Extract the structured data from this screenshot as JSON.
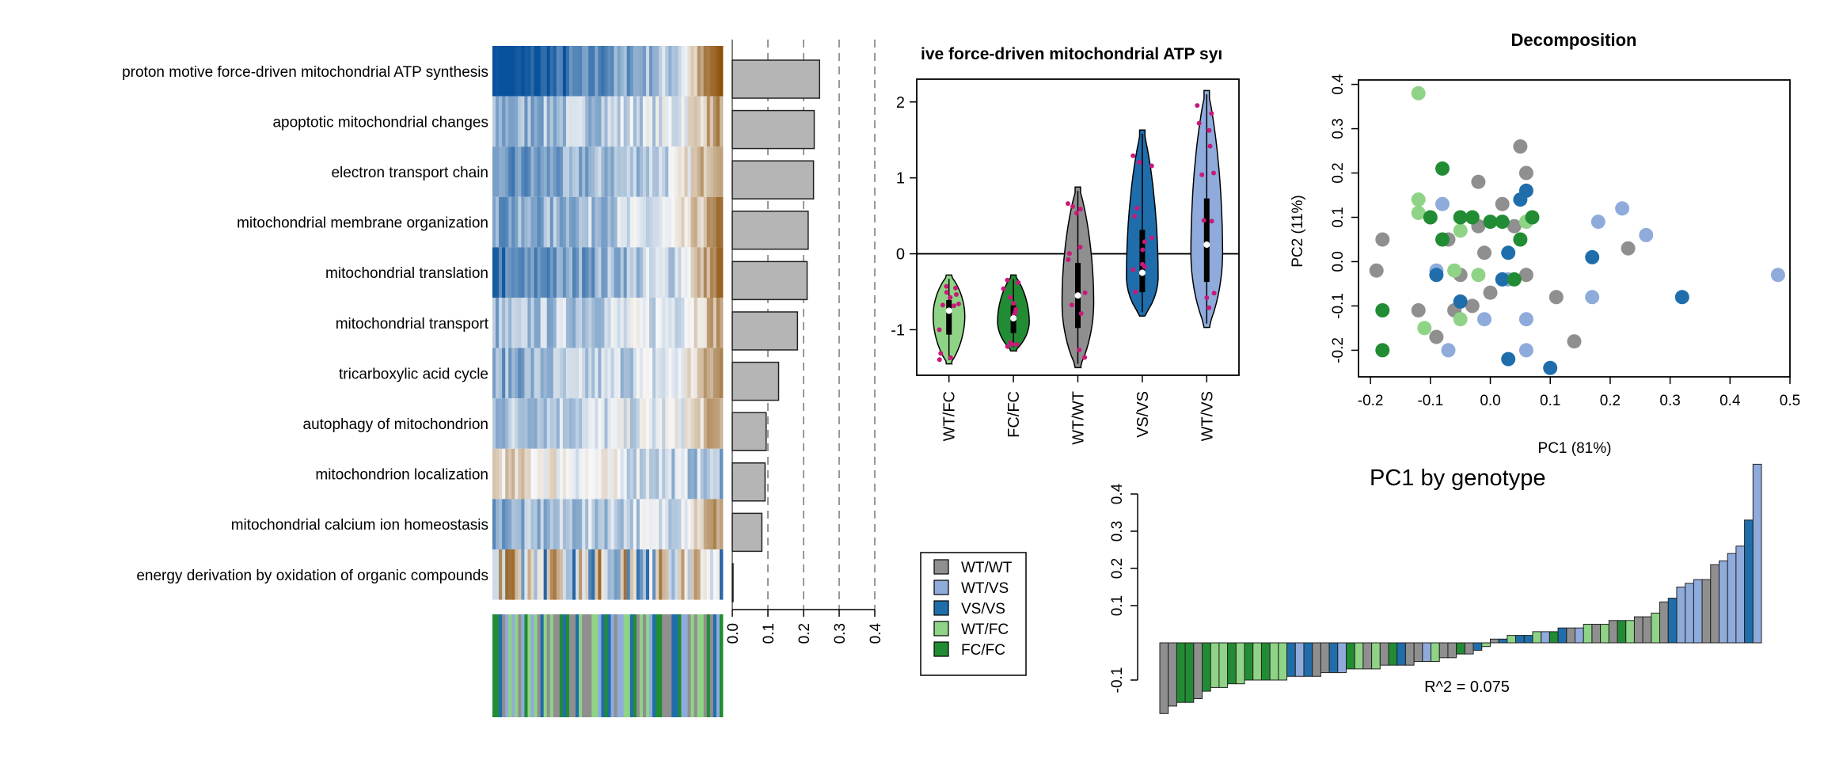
{
  "genotypes": [
    {
      "name": "WT/WT",
      "color": "#8f8f8f"
    },
    {
      "name": "WT/VS",
      "color": "#8fabdb"
    },
    {
      "name": "VS/VS",
      "color": "#1f6eab"
    },
    {
      "name": "WT/FC",
      "color": "#8fd486"
    },
    {
      "name": "FC/FC",
      "color": "#228c34"
    }
  ],
  "chart_data": [
    {
      "type": "heatmap",
      "rows": [
        "proton motive force-driven mitochondrial ATP synthesis",
        "apoptotic mitochondrial changes",
        "electron transport chain",
        "mitochondrial membrane organization",
        "mitochondrial translation",
        "mitochondrial transport",
        "tricarboxylic acid cycle",
        "autophagy of mitochondrion",
        "mitochondrion localization",
        "mitochondrial calcium ion homeostasis",
        "energy derivation by oxidation of organic compounds"
      ],
      "n_samples": 72,
      "palette": {
        "low": "#08519c",
        "mid": "#f7f7f7",
        "high": "#8c510a"
      }
    },
    {
      "type": "bar",
      "orientation": "horizontal",
      "categories": [
        "proton motive force-driven mitochondrial ATP synthesis",
        "apoptotic mitochondrial changes",
        "electron transport chain",
        "mitochondrial membrane organization",
        "mitochondrial translation",
        "mitochondrial transport",
        "tricarboxylic acid cycle",
        "autophagy of mitochondrion",
        "mitochondrion localization",
        "mitochondrial calcium ion homeostasis",
        "energy derivation by oxidation of organic compounds"
      ],
      "values": [
        0.245,
        0.23,
        0.228,
        0.213,
        0.21,
        0.183,
        0.13,
        0.095,
        0.092,
        0.083,
        0.002
      ],
      "xlim": [
        0,
        0.4
      ],
      "xticks": [
        "0.0",
        "0.1",
        "0.2",
        "0.3",
        "0.4"
      ],
      "grid": "dashed vertical"
    },
    {
      "type": "violin",
      "title": "ive force-driven mitochondrial ATP syı",
      "categories": [
        "WT/FC",
        "FC/FC",
        "WT/WT",
        "VS/VS",
        "WT/VS"
      ],
      "ranges": [
        [
          -1.45,
          -0.28
        ],
        [
          -1.28,
          -0.28
        ],
        [
          -1.5,
          0.88
        ],
        [
          -0.82,
          1.63
        ],
        [
          -0.97,
          2.15
        ]
      ],
      "medians": [
        -0.75,
        -0.85,
        -0.55,
        -0.25,
        0.12
      ],
      "ylim": [
        -1.6,
        2.3
      ],
      "yticks": [
        "-1",
        "0",
        "1",
        "2"
      ],
      "reference_line": 0
    },
    {
      "type": "scatter",
      "title": "Decomposition",
      "xlabel": "PC1 (81%)",
      "ylabel": "PC2 (11%)",
      "xlim": [
        -0.22,
        0.5
      ],
      "ylim": [
        -0.26,
        0.41
      ],
      "xticks": [
        "-0.2",
        "-0.1",
        "0.0",
        "0.1",
        "0.2",
        "0.3",
        "0.4",
        "0.5"
      ],
      "yticks": [
        "-0.2",
        "-0.1",
        "0.0",
        "0.1",
        "0.2",
        "0.3",
        "0.4"
      ],
      "points": [
        {
          "x": -0.18,
          "y": 0.05,
          "g": "WT/WT"
        },
        {
          "x": -0.19,
          "y": -0.02,
          "g": "WT/WT"
        },
        {
          "x": -0.12,
          "y": -0.11,
          "g": "WT/WT"
        },
        {
          "x": -0.09,
          "y": -0.17,
          "g": "WT/WT"
        },
        {
          "x": -0.07,
          "y": 0.05,
          "g": "WT/WT"
        },
        {
          "x": -0.05,
          "y": -0.03,
          "g": "WT/WT"
        },
        {
          "x": -0.03,
          "y": -0.1,
          "g": "WT/WT"
        },
        {
          "x": -0.02,
          "y": 0.18,
          "g": "WT/WT"
        },
        {
          "x": -0.02,
          "y": 0.08,
          "g": "WT/WT"
        },
        {
          "x": -0.01,
          "y": 0.02,
          "g": "WT/WT"
        },
        {
          "x": 0.0,
          "y": -0.07,
          "g": "WT/WT"
        },
        {
          "x": 0.02,
          "y": 0.13,
          "g": "WT/WT"
        },
        {
          "x": 0.04,
          "y": 0.08,
          "g": "WT/WT"
        },
        {
          "x": 0.05,
          "y": 0.26,
          "g": "WT/WT"
        },
        {
          "x": 0.06,
          "y": 0.2,
          "g": "WT/WT"
        },
        {
          "x": 0.06,
          "y": -0.03,
          "g": "WT/WT"
        },
        {
          "x": 0.11,
          "y": -0.08,
          "g": "WT/WT"
        },
        {
          "x": 0.14,
          "y": -0.18,
          "g": "WT/WT"
        },
        {
          "x": 0.23,
          "y": 0.03,
          "g": "WT/WT"
        },
        {
          "x": -0.06,
          "y": -0.11,
          "g": "WT/WT"
        },
        {
          "x": -0.08,
          "y": 0.13,
          "g": "WT/VS"
        },
        {
          "x": -0.09,
          "y": -0.02,
          "g": "WT/VS"
        },
        {
          "x": -0.07,
          "y": -0.2,
          "g": "WT/VS"
        },
        {
          "x": -0.01,
          "y": -0.13,
          "g": "WT/VS"
        },
        {
          "x": 0.03,
          "y": -0.04,
          "g": "WT/VS"
        },
        {
          "x": 0.06,
          "y": -0.13,
          "g": "WT/VS"
        },
        {
          "x": 0.06,
          "y": -0.2,
          "g": "WT/VS"
        },
        {
          "x": 0.17,
          "y": -0.08,
          "g": "WT/VS"
        },
        {
          "x": 0.18,
          "y": 0.09,
          "g": "WT/VS"
        },
        {
          "x": 0.22,
          "y": 0.12,
          "g": "WT/VS"
        },
        {
          "x": 0.26,
          "y": 0.06,
          "g": "WT/VS"
        },
        {
          "x": 0.48,
          "y": -0.03,
          "g": "WT/VS"
        },
        {
          "x": -0.09,
          "y": -0.03,
          "g": "VS/VS"
        },
        {
          "x": -0.05,
          "y": -0.09,
          "g": "VS/VS"
        },
        {
          "x": 0.02,
          "y": -0.04,
          "g": "VS/VS"
        },
        {
          "x": 0.03,
          "y": 0.02,
          "g": "VS/VS"
        },
        {
          "x": 0.05,
          "y": 0.14,
          "g": "VS/VS"
        },
        {
          "x": 0.06,
          "y": 0.16,
          "g": "VS/VS"
        },
        {
          "x": 0.03,
          "y": -0.22,
          "g": "VS/VS"
        },
        {
          "x": 0.1,
          "y": -0.24,
          "g": "VS/VS"
        },
        {
          "x": 0.17,
          "y": 0.01,
          "g": "VS/VS"
        },
        {
          "x": 0.32,
          "y": -0.08,
          "g": "VS/VS"
        },
        {
          "x": -0.12,
          "y": 0.38,
          "g": "WT/FC"
        },
        {
          "x": -0.12,
          "y": 0.14,
          "g": "WT/FC"
        },
        {
          "x": -0.12,
          "y": 0.11,
          "g": "WT/FC"
        },
        {
          "x": -0.11,
          "y": -0.15,
          "g": "WT/FC"
        },
        {
          "x": -0.06,
          "y": -0.02,
          "g": "WT/FC"
        },
        {
          "x": -0.05,
          "y": 0.07,
          "g": "WT/FC"
        },
        {
          "x": -0.05,
          "y": -0.13,
          "g": "WT/FC"
        },
        {
          "x": -0.02,
          "y": -0.03,
          "g": "WT/FC"
        },
        {
          "x": 0.06,
          "y": 0.09,
          "g": "WT/FC"
        },
        {
          "x": -0.18,
          "y": -0.2,
          "g": "FC/FC"
        },
        {
          "x": -0.18,
          "y": -0.11,
          "g": "FC/FC"
        },
        {
          "x": -0.1,
          "y": 0.1,
          "g": "FC/FC"
        },
        {
          "x": -0.08,
          "y": 0.21,
          "g": "FC/FC"
        },
        {
          "x": -0.08,
          "y": 0.05,
          "g": "FC/FC"
        },
        {
          "x": -0.05,
          "y": 0.1,
          "g": "FC/FC"
        },
        {
          "x": -0.03,
          "y": 0.1,
          "g": "FC/FC"
        },
        {
          "x": 0.0,
          "y": 0.09,
          "g": "FC/FC"
        },
        {
          "x": 0.02,
          "y": 0.09,
          "g": "FC/FC"
        },
        {
          "x": 0.04,
          "y": -0.04,
          "g": "FC/FC"
        },
        {
          "x": 0.05,
          "y": 0.05,
          "g": "FC/FC"
        },
        {
          "x": 0.07,
          "y": 0.1,
          "g": "FC/FC"
        }
      ]
    },
    {
      "type": "bar",
      "title": "PC1 by genotype",
      "annotation": "R^2 = 0.075",
      "ylim": [
        -0.2,
        0.5
      ],
      "yticks": [
        "-0.1",
        "0.1",
        "0.2",
        "0.3",
        "0.4"
      ],
      "values": [
        -0.19,
        -0.17,
        -0.16,
        -0.16,
        -0.15,
        -0.13,
        -0.12,
        -0.12,
        -0.11,
        -0.11,
        -0.1,
        -0.1,
        -0.1,
        -0.1,
        -0.1,
        -0.09,
        -0.09,
        -0.09,
        -0.09,
        -0.08,
        -0.08,
        -0.08,
        -0.07,
        -0.07,
        -0.07,
        -0.07,
        -0.06,
        -0.06,
        -0.06,
        -0.06,
        -0.05,
        -0.05,
        -0.05,
        -0.04,
        -0.04,
        -0.03,
        -0.03,
        -0.02,
        -0.01,
        0.01,
        0.01,
        0.02,
        0.02,
        0.02,
        0.03,
        0.03,
        0.03,
        0.04,
        0.04,
        0.04,
        0.05,
        0.05,
        0.05,
        0.06,
        0.06,
        0.06,
        0.07,
        0.07,
        0.08,
        0.11,
        0.12,
        0.15,
        0.16,
        0.17,
        0.17,
        0.21,
        0.22,
        0.24,
        0.26,
        0.33,
        0.48
      ],
      "groups": [
        "WT/WT",
        "WT/WT",
        "FC/FC",
        "FC/FC",
        "WT/WT",
        "FC/FC",
        "WT/FC",
        "WT/FC",
        "FC/FC",
        "WT/FC",
        "FC/FC",
        "WT/FC",
        "FC/FC",
        "WT/FC",
        "WT/FC",
        "VS/VS",
        "WT/VS",
        "VS/VS",
        "WT/WT",
        "WT/WT",
        "VS/VS",
        "WT/VS",
        "FC/FC",
        "WT/FC",
        "WT/WT",
        "WT/FC",
        "WT/WT",
        "FC/FC",
        "VS/VS",
        "WT/WT",
        "WT/WT",
        "WT/VS",
        "WT/FC",
        "WT/WT",
        "WT/WT",
        "FC/FC",
        "WT/WT",
        "VS/VS",
        "WT/FC",
        "WT/WT",
        "VS/VS",
        "WT/FC",
        "VS/VS",
        "VS/VS",
        "WT/FC",
        "WT/VS",
        "FC/FC",
        "VS/VS",
        "WT/WT",
        "WT/VS",
        "WT/FC",
        "WT/WT",
        "WT/FC",
        "WT/WT",
        "FC/FC",
        "WT/FC",
        "WT/WT",
        "WT/WT",
        "WT/FC",
        "WT/WT",
        "VS/VS",
        "WT/VS",
        "WT/VS",
        "WT/VS",
        "WT/WT",
        "WT/WT",
        "WT/VS",
        "WT/VS",
        "WT/VS",
        "VS/VS",
        "WT/VS"
      ]
    }
  ]
}
